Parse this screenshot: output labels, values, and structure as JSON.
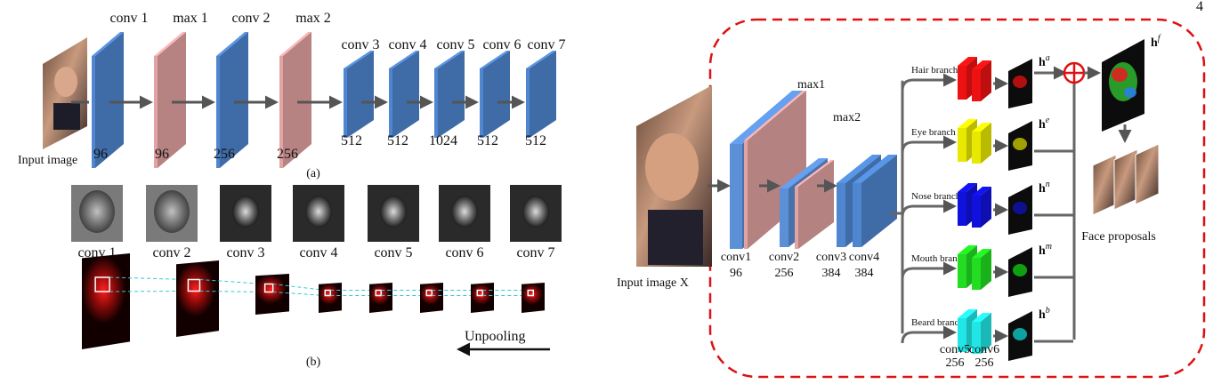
{
  "page_number": "4",
  "left": {
    "input_label": "Input image",
    "caption_a": "(a)",
    "caption_b": "(b)",
    "unpooling_label": "Unpooling",
    "colors": {
      "conv": "#4f86cf",
      "pool": "#e3a3a3",
      "arrow": "#555555"
    },
    "layers": [
      {
        "name": "conv 1",
        "size": "96"
      },
      {
        "name": "max 1",
        "size": "96"
      },
      {
        "name": "conv 2",
        "size": "256"
      },
      {
        "name": "max 2",
        "size": "256"
      },
      {
        "name": "conv 3",
        "size": "512"
      },
      {
        "name": "conv 4",
        "size": "512"
      },
      {
        "name": "conv 5",
        "size": "1024"
      },
      {
        "name": "conv 6",
        "size": "512"
      },
      {
        "name": "conv 7",
        "size": "512"
      }
    ],
    "feature_maps": [
      "conv 1",
      "conv 2",
      "conv 3",
      "conv 4",
      "conv 5",
      "conv 6",
      "conv 7"
    ]
  },
  "right": {
    "input_label": "Input image X",
    "max1": "max1",
    "max2": "max2",
    "trunk": [
      {
        "name": "conv1",
        "size": "96"
      },
      {
        "name": "conv2",
        "size": "256"
      },
      {
        "name": "conv3",
        "size": "384"
      },
      {
        "name": "conv4",
        "size": "384"
      }
    ],
    "branches": [
      {
        "label": "Hair branch",
        "color": "#ee1111",
        "h": "a"
      },
      {
        "label": "Eye branch",
        "color": "#e8e800",
        "h": "e"
      },
      {
        "label": "Nose branch",
        "color": "#1111dd",
        "h": "n"
      },
      {
        "label": "Mouth branch",
        "color": "#22dd22",
        "h": "m"
      },
      {
        "label": "Beard branch",
        "color": "#22e6e6",
        "h": "b"
      }
    ],
    "conv5": {
      "name": "conv5",
      "size": "256"
    },
    "conv6": {
      "name": "conv6",
      "size": "256"
    },
    "hf_sup": "f",
    "face_proposals": "Face proposals"
  }
}
